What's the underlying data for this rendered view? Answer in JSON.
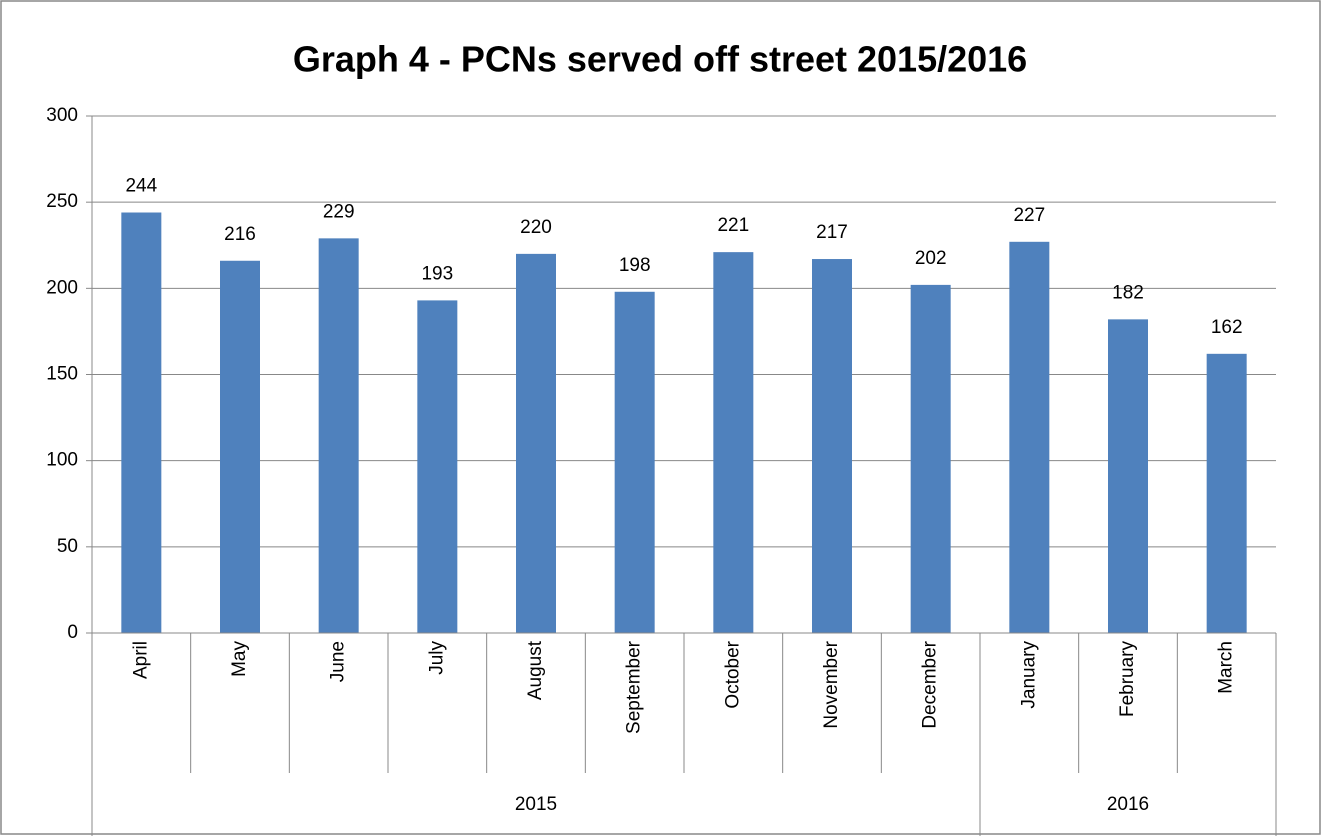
{
  "chart_data": {
    "type": "bar",
    "title": "Graph 4 - PCNs served off street 2015/2016",
    "categories": [
      "April",
      "May",
      "June",
      "July",
      "August",
      "September",
      "October",
      "November",
      "December",
      "January",
      "February",
      "March"
    ],
    "values": [
      244,
      216,
      229,
      193,
      220,
      198,
      221,
      217,
      202,
      227,
      182,
      162
    ],
    "category_groups": [
      {
        "label": "2015",
        "span": 9
      },
      {
        "label": "2016",
        "span": 3
      }
    ],
    "color": "#4f81bd",
    "ylim": [
      0,
      300
    ],
    "yticks": [
      0,
      50,
      100,
      150,
      200,
      250,
      300
    ],
    "grid": true
  }
}
